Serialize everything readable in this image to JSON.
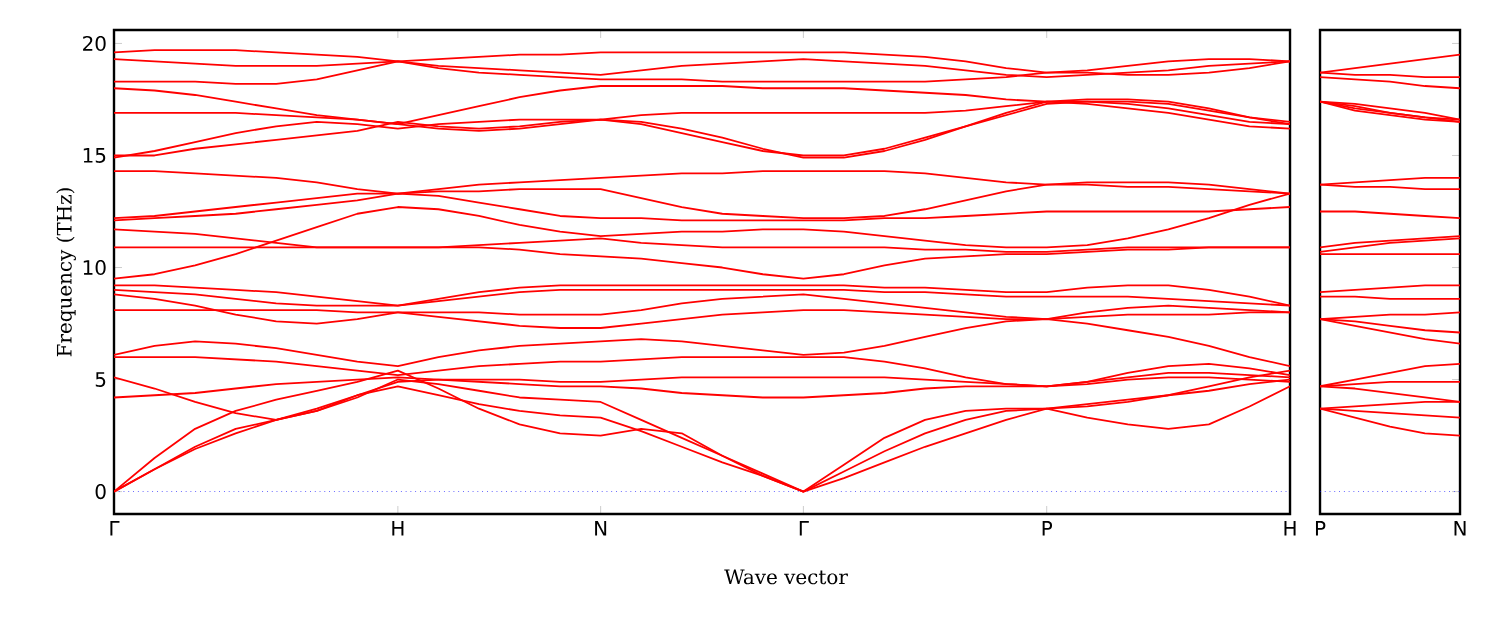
{
  "chart_data": [
    {
      "type": "line",
      "ylabel": "Frequency (THz)",
      "xlabel": "Wave vector",
      "categories": [
        "Γ",
        null,
        null,
        null,
        null,
        null,
        null,
        "H",
        null,
        null,
        null,
        null,
        "N",
        null,
        null,
        null,
        null,
        "Γ",
        null,
        null,
        null,
        null,
        null,
        "P",
        null,
        null,
        null,
        null,
        null,
        "H"
      ],
      "ylim": [
        -1,
        20.6
      ],
      "yticks": [
        0,
        5,
        10,
        15,
        20
      ],
      "ref_lines": [
        {
          "axis": "y",
          "value": 0,
          "color": "#0000ff",
          "line_style": "dotted"
        }
      ],
      "series": [
        {
          "color": "#ff0000",
          "values": [
            19.6,
            19.7,
            19.7,
            19.7,
            19.6,
            19.5,
            19.4,
            19.2,
            19.3,
            19.4,
            19.5,
            19.5,
            19.6,
            19.6,
            19.6,
            19.6,
            19.6,
            19.6,
            19.6,
            19.5,
            19.4,
            19.2,
            18.9,
            18.7,
            18.8,
            19.0,
            19.2,
            19.3,
            19.3,
            19.2
          ]
        },
        {
          "color": "#ff0000",
          "values": [
            19.3,
            19.2,
            19.1,
            19.0,
            19.0,
            19.0,
            19.1,
            19.2,
            19.0,
            18.9,
            18.8,
            18.7,
            18.6,
            18.8,
            19.0,
            19.1,
            19.2,
            19.3,
            19.2,
            19.1,
            19.0,
            18.8,
            18.6,
            18.5,
            18.6,
            18.7,
            18.8,
            19.0,
            19.1,
            19.2
          ]
        },
        {
          "color": "#ff0000",
          "values": [
            18.3,
            18.3,
            18.3,
            18.2,
            18.2,
            18.4,
            18.8,
            19.2,
            18.9,
            18.7,
            18.6,
            18.5,
            18.4,
            18.4,
            18.4,
            18.3,
            18.3,
            18.3,
            18.3,
            18.3,
            18.3,
            18.4,
            18.5,
            18.7,
            18.7,
            18.6,
            18.6,
            18.7,
            18.9,
            19.2
          ]
        },
        {
          "color": "#ff0000",
          "values": [
            18.0,
            17.9,
            17.7,
            17.4,
            17.1,
            16.8,
            16.6,
            16.4,
            16.8,
            17.2,
            17.6,
            17.9,
            18.1,
            18.1,
            18.1,
            18.1,
            18.0,
            18.0,
            18.0,
            17.9,
            17.8,
            17.7,
            17.5,
            17.4,
            17.5,
            17.5,
            17.4,
            17.1,
            16.7,
            16.4
          ]
        },
        {
          "color": "#ff0000",
          "values": [
            16.9,
            16.9,
            16.9,
            16.9,
            16.8,
            16.7,
            16.6,
            16.4,
            16.2,
            16.1,
            16.2,
            16.4,
            16.6,
            16.8,
            16.9,
            16.9,
            16.9,
            16.9,
            16.9,
            16.9,
            16.9,
            17.0,
            17.2,
            17.4,
            17.4,
            17.3,
            17.1,
            16.8,
            16.5,
            16.4
          ]
        },
        {
          "color": "#ff0000",
          "values": [
            14.9,
            15.2,
            15.6,
            16.0,
            16.3,
            16.5,
            16.4,
            16.2,
            16.4,
            16.5,
            16.6,
            16.6,
            16.6,
            16.5,
            16.2,
            15.8,
            15.3,
            14.9,
            14.9,
            15.2,
            15.7,
            16.3,
            16.9,
            17.4,
            17.3,
            17.1,
            16.9,
            16.6,
            16.3,
            16.2
          ]
        },
        {
          "color": "#ff0000",
          "values": [
            15.0,
            15.0,
            15.3,
            15.5,
            15.7,
            15.9,
            16.1,
            16.5,
            16.3,
            16.2,
            16.3,
            16.5,
            16.6,
            16.4,
            16.0,
            15.6,
            15.2,
            15.0,
            15.0,
            15.3,
            15.8,
            16.3,
            16.8,
            17.3,
            17.4,
            17.4,
            17.3,
            17.0,
            16.7,
            16.5
          ]
        },
        {
          "color": "#ff0000",
          "values": [
            14.3,
            14.3,
            14.2,
            14.1,
            14.0,
            13.8,
            13.5,
            13.3,
            13.5,
            13.7,
            13.8,
            13.9,
            14.0,
            14.1,
            14.2,
            14.2,
            14.3,
            14.3,
            14.3,
            14.3,
            14.2,
            14.0,
            13.8,
            13.7,
            13.8,
            13.8,
            13.8,
            13.7,
            13.5,
            13.3
          ]
        },
        {
          "color": "#ff0000",
          "values": [
            12.2,
            12.3,
            12.5,
            12.7,
            12.9,
            13.1,
            13.3,
            13.3,
            13.4,
            13.4,
            13.5,
            13.5,
            13.5,
            13.1,
            12.7,
            12.4,
            12.3,
            12.2,
            12.2,
            12.3,
            12.6,
            13.0,
            13.4,
            13.7,
            13.7,
            13.6,
            13.6,
            13.5,
            13.4,
            13.3
          ]
        },
        {
          "color": "#ff0000",
          "values": [
            12.1,
            12.2,
            12.3,
            12.4,
            12.6,
            12.8,
            13.0,
            13.3,
            13.2,
            12.9,
            12.6,
            12.3,
            12.2,
            12.2,
            12.1,
            12.1,
            12.1,
            12.1,
            12.1,
            12.2,
            12.2,
            12.3,
            12.4,
            12.5,
            12.5,
            12.5,
            12.5,
            12.5,
            12.6,
            12.7
          ]
        },
        {
          "color": "#ff0000",
          "values": [
            9.5,
            9.7,
            10.1,
            10.6,
            11.2,
            11.8,
            12.4,
            12.7,
            12.6,
            12.3,
            11.9,
            11.6,
            11.4,
            11.5,
            11.6,
            11.6,
            11.7,
            11.7,
            11.6,
            11.4,
            11.2,
            11.0,
            10.9,
            10.9,
            11.0,
            11.3,
            11.7,
            12.2,
            12.8,
            13.3
          ]
        },
        {
          "color": "#ff0000",
          "values": [
            11.7,
            11.6,
            11.5,
            11.3,
            11.1,
            10.9,
            10.9,
            10.9,
            10.9,
            11.0,
            11.1,
            11.2,
            11.3,
            11.1,
            11.0,
            10.9,
            10.9,
            10.9,
            10.9,
            10.9,
            10.8,
            10.8,
            10.7,
            10.7,
            10.8,
            10.9,
            10.9,
            10.9,
            10.9,
            10.9
          ]
        },
        {
          "color": "#ff0000",
          "values": [
            10.9,
            10.9,
            10.9,
            10.9,
            10.9,
            10.9,
            10.9,
            10.9,
            10.9,
            10.9,
            10.8,
            10.6,
            10.5,
            10.4,
            10.2,
            10.0,
            9.7,
            9.5,
            9.7,
            10.1,
            10.4,
            10.5,
            10.6,
            10.6,
            10.7,
            10.8,
            10.8,
            10.9,
            10.9,
            10.9
          ]
        },
        {
          "color": "#ff0000",
          "values": [
            9.2,
            9.2,
            9.1,
            9.0,
            8.9,
            8.7,
            8.5,
            8.3,
            8.6,
            8.9,
            9.1,
            9.2,
            9.2,
            9.2,
            9.2,
            9.2,
            9.2,
            9.2,
            9.2,
            9.1,
            9.1,
            9.0,
            8.9,
            8.9,
            9.1,
            9.2,
            9.2,
            9.0,
            8.7,
            8.3
          ]
        },
        {
          "color": "#ff0000",
          "values": [
            9.0,
            8.9,
            8.8,
            8.6,
            8.4,
            8.3,
            8.3,
            8.3,
            8.5,
            8.7,
            8.9,
            9.0,
            9.0,
            9.0,
            9.0,
            9.0,
            9.0,
            9.0,
            9.0,
            8.9,
            8.9,
            8.8,
            8.7,
            8.7,
            8.7,
            8.7,
            8.6,
            8.5,
            8.4,
            8.3
          ]
        },
        {
          "color": "#ff0000",
          "values": [
            8.8,
            8.6,
            8.3,
            7.9,
            7.6,
            7.5,
            7.7,
            8.0,
            8.0,
            8.0,
            7.9,
            7.9,
            7.9,
            8.1,
            8.4,
            8.6,
            8.7,
            8.8,
            8.6,
            8.4,
            8.2,
            8.0,
            7.8,
            7.7,
            8.0,
            8.2,
            8.3,
            8.2,
            8.1,
            8.0
          ]
        },
        {
          "color": "#ff0000",
          "values": [
            8.1,
            8.1,
            8.1,
            8.1,
            8.1,
            8.1,
            8.0,
            8.0,
            7.8,
            7.6,
            7.4,
            7.3,
            7.3,
            7.5,
            7.7,
            7.9,
            8.0,
            8.1,
            8.1,
            8.0,
            7.9,
            7.8,
            7.7,
            7.7,
            7.8,
            7.9,
            7.9,
            7.9,
            8.0,
            8.0
          ]
        },
        {
          "color": "#ff0000",
          "values": [
            6.1,
            6.5,
            6.7,
            6.6,
            6.4,
            6.1,
            5.8,
            5.6,
            6.0,
            6.3,
            6.5,
            6.6,
            6.7,
            6.8,
            6.7,
            6.5,
            6.3,
            6.1,
            6.2,
            6.5,
            6.9,
            7.3,
            7.6,
            7.7,
            7.5,
            7.2,
            6.9,
            6.5,
            6.0,
            5.6
          ]
        },
        {
          "color": "#ff0000",
          "values": [
            6.0,
            6.0,
            6.0,
            5.9,
            5.8,
            5.6,
            5.4,
            5.2,
            5.4,
            5.6,
            5.7,
            5.8,
            5.8,
            5.9,
            6.0,
            6.0,
            6.0,
            6.0,
            6.0,
            5.8,
            5.5,
            5.1,
            4.8,
            4.7,
            4.9,
            5.3,
            5.6,
            5.7,
            5.5,
            5.2
          ]
        },
        {
          "color": "#ff0000",
          "values": [
            5.1,
            4.6,
            4.0,
            3.5,
            3.2,
            3.6,
            4.3,
            4.9,
            5.0,
            5.0,
            5.0,
            4.9,
            4.9,
            5.0,
            5.1,
            5.1,
            5.1,
            5.1,
            5.1,
            5.1,
            5.0,
            4.9,
            4.8,
            4.7,
            4.8,
            5.0,
            5.1,
            5.1,
            5.0,
            4.9
          ]
        },
        {
          "color": "#ff0000",
          "values": [
            4.2,
            4.3,
            4.4,
            4.6,
            4.8,
            4.9,
            5.0,
            5.1,
            5.0,
            4.9,
            4.8,
            4.7,
            4.7,
            4.6,
            4.4,
            4.3,
            4.2,
            4.2,
            4.3,
            4.4,
            4.6,
            4.7,
            4.7,
            4.7,
            4.9,
            5.1,
            5.3,
            5.3,
            5.2,
            5.1
          ]
        },
        {
          "color": "#ff0000",
          "values": [
            0,
            1.0,
            2.0,
            2.8,
            3.2,
            3.6,
            4.2,
            5.0,
            4.8,
            4.5,
            4.2,
            4.1,
            4.0,
            3.2,
            2.4,
            1.6,
            0.8,
            0,
            1.2,
            2.4,
            3.2,
            3.6,
            3.7,
            3.7,
            3.9,
            4.1,
            4.3,
            4.5,
            4.8,
            5.0
          ]
        },
        {
          "color": "#ff0000",
          "values": [
            0,
            1.0,
            1.9,
            2.6,
            3.2,
            3.7,
            4.3,
            4.7,
            4.3,
            3.9,
            3.6,
            3.4,
            3.3,
            2.7,
            2.0,
            1.3,
            0.7,
            0,
            0.6,
            1.3,
            2.0,
            2.6,
            3.2,
            3.7,
            3.3,
            3.0,
            2.8,
            3.0,
            3.8,
            4.7
          ]
        },
        {
          "color": "#ff0000",
          "values": [
            0,
            1.5,
            2.8,
            3.6,
            4.1,
            4.5,
            4.9,
            5.4,
            4.6,
            3.7,
            3.0,
            2.6,
            2.5,
            2.8,
            2.6,
            1.6,
            0.7,
            0,
            0.9,
            1.8,
            2.6,
            3.2,
            3.6,
            3.7,
            3.8,
            4.0,
            4.3,
            4.7,
            5.1,
            5.4
          ]
        }
      ]
    },
    {
      "type": "line",
      "categories": [
        "P",
        null,
        null,
        null,
        "N"
      ],
      "ylim": [
        -1,
        20.6
      ],
      "yticks": [
        0,
        5,
        10,
        15,
        20
      ],
      "tick_labels": "x",
      "ref_lines": [
        {
          "axis": "y",
          "value": 0,
          "color": "#0000ff",
          "line_style": "dotted"
        }
      ],
      "series": [
        {
          "color": "#ff0000",
          "values": [
            18.7,
            18.9,
            19.1,
            19.3,
            19.5
          ]
        },
        {
          "color": "#ff0000",
          "values": [
            18.7,
            18.6,
            18.6,
            18.5,
            18.5
          ]
        },
        {
          "color": "#ff0000",
          "values": [
            18.5,
            18.4,
            18.3,
            18.1,
            18.0
          ]
        },
        {
          "color": "#ff0000",
          "values": [
            17.4,
            17.1,
            16.9,
            16.7,
            16.6
          ]
        },
        {
          "color": "#ff0000",
          "values": [
            17.4,
            17.2,
            16.9,
            16.7,
            16.5
          ]
        },
        {
          "color": "#ff0000",
          "values": [
            17.4,
            17.3,
            17.1,
            16.9,
            16.6
          ]
        },
        {
          "color": "#ff0000",
          "values": [
            17.4,
            17.0,
            16.8,
            16.6,
            16.5
          ]
        },
        {
          "color": "#ff0000",
          "values": [
            13.7,
            13.8,
            13.9,
            14.0,
            14.0
          ]
        },
        {
          "color": "#ff0000",
          "values": [
            13.7,
            13.6,
            13.6,
            13.5,
            13.5
          ]
        },
        {
          "color": "#ff0000",
          "values": [
            12.5,
            12.5,
            12.4,
            12.3,
            12.2
          ]
        },
        {
          "color": "#ff0000",
          "values": [
            10.9,
            11.1,
            11.2,
            11.3,
            11.4
          ]
        },
        {
          "color": "#ff0000",
          "values": [
            10.7,
            10.9,
            11.1,
            11.2,
            11.3
          ]
        },
        {
          "color": "#ff0000",
          "values": [
            10.6,
            10.6,
            10.6,
            10.6,
            10.6
          ]
        },
        {
          "color": "#ff0000",
          "values": [
            8.9,
            9.0,
            9.1,
            9.2,
            9.2
          ]
        },
        {
          "color": "#ff0000",
          "values": [
            8.7,
            8.7,
            8.6,
            8.6,
            8.6
          ]
        },
        {
          "color": "#ff0000",
          "values": [
            7.7,
            7.6,
            7.4,
            7.2,
            7.1
          ]
        },
        {
          "color": "#ff0000",
          "values": [
            7.7,
            7.4,
            7.1,
            6.8,
            6.6
          ]
        },
        {
          "color": "#ff0000",
          "values": [
            7.7,
            7.8,
            7.9,
            7.9,
            8.0
          ]
        },
        {
          "color": "#ff0000",
          "values": [
            4.7,
            5.0,
            5.3,
            5.6,
            5.7
          ]
        },
        {
          "color": "#ff0000",
          "values": [
            4.7,
            4.8,
            4.9,
            4.9,
            4.9
          ]
        },
        {
          "color": "#ff0000",
          "values": [
            4.7,
            4.6,
            4.4,
            4.2,
            4.0
          ]
        },
        {
          "color": "#ff0000",
          "values": [
            3.7,
            3.8,
            3.9,
            4.0,
            4.0
          ]
        },
        {
          "color": "#ff0000",
          "values": [
            3.7,
            3.3,
            2.9,
            2.6,
            2.5
          ]
        },
        {
          "color": "#ff0000",
          "values": [
            3.7,
            3.6,
            3.5,
            3.4,
            3.3
          ]
        }
      ]
    }
  ]
}
